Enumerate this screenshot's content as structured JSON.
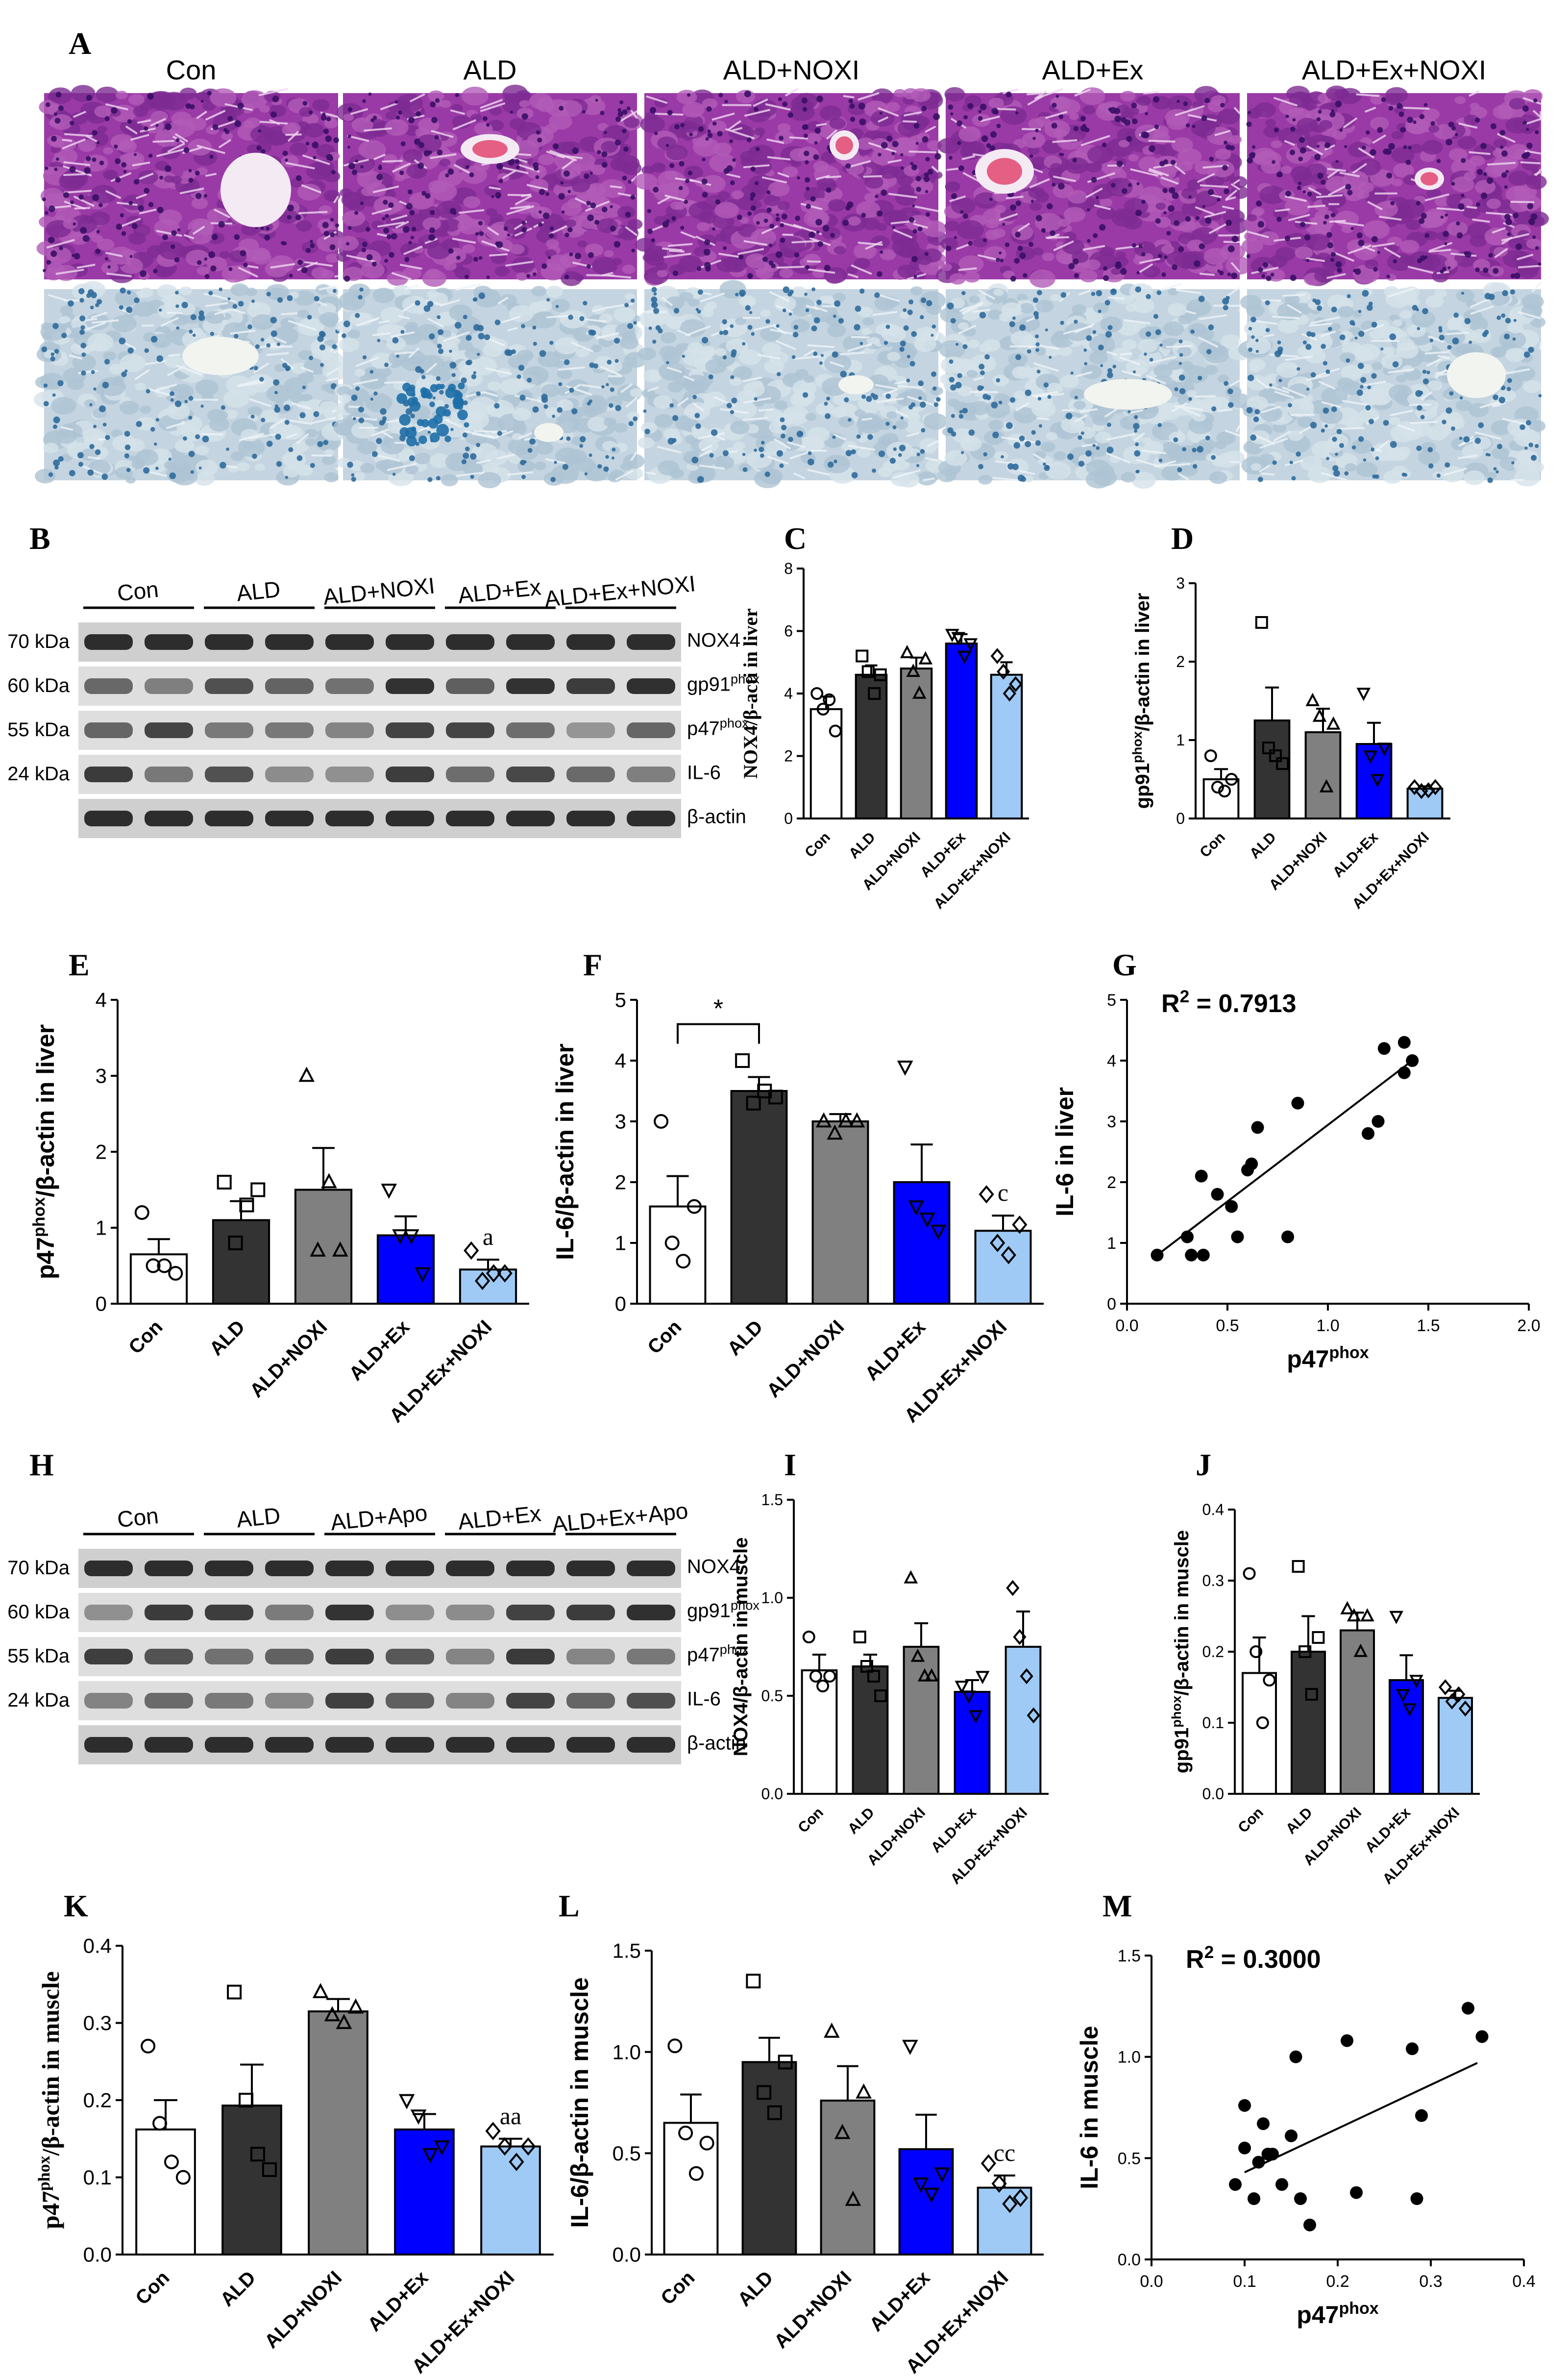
{
  "panel_a": {
    "label": "A",
    "groups": [
      "Con",
      "ALD",
      "ALD+NOXI",
      "ALD+Ex",
      "ALD+Ex+NOXI"
    ]
  },
  "western_liver": {
    "label": "B",
    "groups": [
      "Con",
      "ALD",
      "ALD+NOXI",
      "ALD+Ex",
      "ALD+Ex+NOXI"
    ],
    "rows": [
      {
        "kda": "70 kDa",
        "protein": "NOX4",
        "sup": ""
      },
      {
        "kda": "60 kDa",
        "protein": "gp91",
        "sup": "phox"
      },
      {
        "kda": "55 kDa",
        "protein": "p47",
        "sup": "phox"
      },
      {
        "kda": "24 kDa",
        "protein": "IL-6",
        "sup": ""
      },
      {
        "kda": "",
        "protein": "β-actin",
        "sup": ""
      }
    ]
  },
  "western_muscle": {
    "label": "H",
    "groups": [
      "Con",
      "ALD",
      "ALD+Apo",
      "ALD+Ex",
      "ALD+Ex+Apo"
    ],
    "rows": [
      {
        "kda": "70 kDa",
        "protein": "NOX4",
        "sup": ""
      },
      {
        "kda": "60 kDa",
        "protein": "gp91",
        "sup": "phox"
      },
      {
        "kda": "55 kDa",
        "protein": "p47",
        "sup": "phox"
      },
      {
        "kda": "24 kDa",
        "protein": "IL-6",
        "sup": ""
      },
      {
        "kda": "",
        "protein": "β-actin",
        "sup": ""
      }
    ]
  },
  "colors": {
    "Con": "#ffffff",
    "ALD": "#333333",
    "ALD+NOXI": "#808080",
    "ALD+Ex": "#0000ff",
    "ALD+Ex+NOXI": "#9ecaf5"
  },
  "chart_data": [
    {
      "id": "C",
      "type": "bar",
      "label": "C",
      "categories": [
        "Con",
        "ALD",
        "ALD+NOXI",
        "ALD+Ex",
        "ALD+Ex+NOXI"
      ],
      "values": [
        3.5,
        4.6,
        4.8,
        5.6,
        4.6
      ],
      "errors": [
        0.4,
        0.3,
        0.35,
        0.3,
        0.4
      ],
      "points": [
        [
          4.0,
          3.5,
          3.8,
          2.8
        ],
        [
          5.2,
          4.7,
          4.0,
          4.6
        ],
        [
          5.3,
          4.7,
          4.0,
          5.1
        ],
        [
          5.9,
          5.8,
          5.2,
          5.6
        ],
        [
          5.2,
          4.7,
          4.0,
          4.3
        ]
      ],
      "ylabel": "NOX4/β-acti in liver",
      "ylim": [
        0,
        8
      ],
      "yticks": [
        0,
        2,
        4,
        6,
        8
      ],
      "annotations": []
    },
    {
      "id": "D",
      "type": "bar",
      "label": "D",
      "categories": [
        "Con",
        "ALD",
        "ALD+NOXI",
        "ALD+Ex",
        "ALD+Ex+NOXI"
      ],
      "values": [
        0.5,
        1.25,
        1.1,
        0.95,
        0.38
      ],
      "errors": [
        0.13,
        0.42,
        0.3,
        0.27,
        0.03
      ],
      "points": [
        [
          0.8,
          0.4,
          0.35,
          0.5
        ],
        [
          2.5,
          0.9,
          0.8,
          0.7
        ],
        [
          1.5,
          1.3,
          0.4,
          1.2
        ],
        [
          1.6,
          0.8,
          0.5,
          0.9
        ],
        [
          0.4,
          0.35,
          0.36,
          0.4
        ]
      ],
      "ylabel": "gp91phox/β-actin in liver",
      "ylim": [
        0,
        3
      ],
      "yticks": [
        0,
        1,
        2,
        3
      ],
      "annotations": []
    },
    {
      "id": "E",
      "type": "bar",
      "label": "E",
      "categories": [
        "Con",
        "ALD",
        "ALD+NOXI",
        "ALD+Ex",
        "ALD+Ex+NOXI"
      ],
      "values": [
        0.65,
        1.1,
        1.5,
        0.9,
        0.45
      ],
      "errors": [
        0.2,
        0.25,
        0.55,
        0.25,
        0.13
      ],
      "points": [
        [
          1.2,
          0.5,
          0.5,
          0.4
        ],
        [
          1.6,
          0.8,
          1.3,
          1.5
        ],
        [
          3.0,
          0.7,
          1.6,
          0.7
        ],
        [
          1.5,
          0.9,
          0.9,
          0.4
        ],
        [
          0.7,
          0.3,
          0.4,
          0.4
        ]
      ],
      "ylabel": "p47phox/β-actin in liver",
      "ylim": [
        0,
        4
      ],
      "yticks": [
        0,
        1,
        2,
        3,
        4
      ],
      "annotations": [
        {
          "cat": 4,
          "text": "a"
        }
      ]
    },
    {
      "id": "F",
      "type": "bar",
      "label": "F",
      "categories": [
        "Con",
        "ALD",
        "ALD+NOXI",
        "ALD+Ex",
        "ALD+Ex+NOXI"
      ],
      "values": [
        1.6,
        3.5,
        3.0,
        2.0,
        1.2
      ],
      "errors": [
        0.5,
        0.23,
        0.12,
        0.62,
        0.25
      ],
      "points": [
        [
          3.0,
          1.0,
          0.7,
          1.6
        ],
        [
          4.0,
          3.3,
          3.5,
          3.4
        ],
        [
          3.0,
          2.8,
          3.0,
          3.0
        ],
        [
          3.9,
          1.6,
          1.4,
          1.2
        ],
        [
          1.8,
          1.0,
          0.8,
          1.3
        ]
      ],
      "ylabel": "IL-6/β-actin in liver",
      "ylim": [
        0,
        5
      ],
      "yticks": [
        0,
        1,
        2,
        3,
        4,
        5
      ],
      "annotations": [
        {
          "cat": 4,
          "text": "c"
        }
      ],
      "bracket": {
        "from": 0,
        "to": 1,
        "y": 4.6,
        "text": "*"
      }
    },
    {
      "id": "G",
      "type": "scatter",
      "label": "G",
      "r2": "R2 = 0.7913",
      "x": [
        0.15,
        0.3,
        0.32,
        0.37,
        0.38,
        0.45,
        0.52,
        0.55,
        0.6,
        0.62,
        0.65,
        0.8,
        0.85,
        1.2,
        1.25,
        1.28,
        1.38,
        1.38,
        1.42
      ],
      "y": [
        0.8,
        1.1,
        0.8,
        2.1,
        0.8,
        1.8,
        1.6,
        1.1,
        2.2,
        2.3,
        2.9,
        1.1,
        3.3,
        2.8,
        3.0,
        4.2,
        4.3,
        3.8,
        4.0
      ],
      "fit": [
        [
          0.15,
          0.8
        ],
        [
          1.4,
          3.95
        ]
      ],
      "xlabel": "p47phox",
      "ylabel": "IL-6 in liver",
      "xlim": [
        0,
        2.0
      ],
      "ylim": [
        0,
        5
      ],
      "xticks": [
        "0.0",
        "0.5",
        "1.0",
        "1.5",
        "2.0"
      ],
      "yticks": [
        "0",
        "1",
        "2",
        "3",
        "4",
        "5"
      ]
    },
    {
      "id": "I",
      "type": "bar",
      "label": "I",
      "categories": [
        "Con",
        "ALD",
        "ALD+NOXI",
        "ALD+Ex",
        "ALD+Ex+NOXI"
      ],
      "values": [
        0.63,
        0.65,
        0.75,
        0.52,
        0.75
      ],
      "errors": [
        0.08,
        0.06,
        0.12,
        0.06,
        0.18
      ],
      "points": [
        [
          0.8,
          0.6,
          0.55,
          0.6
        ],
        [
          0.8,
          0.65,
          0.6,
          0.5
        ],
        [
          1.1,
          0.7,
          0.6,
          0.6
        ],
        [
          0.55,
          0.5,
          0.4,
          0.6
        ],
        [
          1.05,
          0.8,
          0.6,
          0.4
        ]
      ],
      "ylabel": "NOX4/β-actin in muscle",
      "ylim": [
        0,
        1.5
      ],
      "yticks": [
        "0.0",
        "0.5",
        "1.0",
        "1.5"
      ],
      "annotations": []
    },
    {
      "id": "J",
      "type": "bar",
      "label": "J",
      "categories": [
        "Con",
        "ALD",
        "ALD+NOXI",
        "ALD+Ex",
        "ALD+Ex+NOXI"
      ],
      "values": [
        0.17,
        0.2,
        0.23,
        0.16,
        0.135
      ],
      "errors": [
        0.05,
        0.05,
        0.025,
        0.035,
        0.01
      ],
      "points": [
        [
          0.31,
          0.2,
          0.1,
          0.16
        ],
        [
          0.32,
          0.2,
          0.14,
          0.22
        ],
        [
          0.26,
          0.25,
          0.2,
          0.25
        ],
        [
          0.25,
          0.14,
          0.12,
          0.16
        ],
        [
          0.15,
          0.13,
          0.14,
          0.12
        ]
      ],
      "ylabel": "gp91phox/β-actin in muscle",
      "ylim": [
        0,
        0.4
      ],
      "yticks": [
        "0.0",
        "0.1",
        "0.2",
        "0.3",
        "0.4"
      ],
      "annotations": []
    },
    {
      "id": "K",
      "type": "bar",
      "label": "K",
      "categories": [
        "Con",
        "ALD",
        "ALD+NOXI",
        "ALD+Ex",
        "ALD+Ex+NOXI"
      ],
      "values": [
        0.162,
        0.193,
        0.315,
        0.162,
        0.14
      ],
      "errors": [
        0.038,
        0.053,
        0.016,
        0.02,
        0.01
      ],
      "points": [
        [
          0.27,
          0.17,
          0.12,
          0.1
        ],
        [
          0.34,
          0.2,
          0.13,
          0.11
        ],
        [
          0.34,
          0.31,
          0.3,
          0.32
        ],
        [
          0.2,
          0.18,
          0.13,
          0.14
        ],
        [
          0.16,
          0.14,
          0.12,
          0.14
        ]
      ],
      "ylabel": "p47phox/β-actin in muscle",
      "ylim": [
        0,
        0.4
      ],
      "yticks": [
        "0.0",
        "0.1",
        "0.2",
        "0.3",
        "0.4"
      ],
      "annotations": [
        {
          "cat": 4,
          "text": "aa"
        }
      ]
    },
    {
      "id": "L",
      "type": "bar",
      "label": "L",
      "categories": [
        "Con",
        "ALD",
        "ALD+NOXI",
        "ALD+Ex",
        "ALD+Ex+NOXI"
      ],
      "values": [
        0.65,
        0.95,
        0.76,
        0.52,
        0.33
      ],
      "errors": [
        0.14,
        0.12,
        0.17,
        0.17,
        0.06
      ],
      "points": [
        [
          1.03,
          0.6,
          0.4,
          0.55
        ],
        [
          1.35,
          0.8,
          0.7,
          0.95
        ],
        [
          1.1,
          0.6,
          0.27,
          0.8
        ],
        [
          1.03,
          0.35,
          0.3,
          0.4
        ],
        [
          0.45,
          0.35,
          0.25,
          0.28
        ]
      ],
      "ylabel": "IL-6/β-actin in muscle",
      "ylim": [
        0,
        1.5
      ],
      "yticks": [
        "0.0",
        "0.5",
        "1.0",
        "1.5"
      ],
      "annotations": [
        {
          "cat": 4,
          "text": "cc"
        }
      ]
    },
    {
      "id": "M",
      "type": "scatter",
      "label": "M",
      "r2": "R2 = 0.3000",
      "x": [
        0.09,
        0.1,
        0.11,
        0.115,
        0.12,
        0.125,
        0.13,
        0.14,
        0.15,
        0.155,
        0.16,
        0.17,
        0.21,
        0.22,
        0.28,
        0.285,
        0.29,
        0.34,
        0.355,
        0.1
      ],
      "y": [
        0.37,
        0.76,
        0.3,
        0.48,
        0.67,
        0.52,
        0.52,
        0.37,
        0.61,
        1.0,
        0.3,
        0.17,
        1.08,
        0.33,
        1.04,
        0.3,
        0.71,
        1.24,
        1.1,
        0.55
      ],
      "fit": [
        [
          0.1,
          0.43
        ],
        [
          0.35,
          0.97
        ]
      ],
      "xlabel": "p47phox",
      "ylabel": "IL-6 in muscle",
      "xlim": [
        0,
        0.4
      ],
      "ylim": [
        0,
        1.5
      ],
      "xticks": [
        "0.0",
        "0.1",
        "0.2",
        "0.3",
        "0.4"
      ],
      "yticks": [
        "0.0",
        "0.5",
        "1.0",
        "1.5"
      ]
    }
  ]
}
